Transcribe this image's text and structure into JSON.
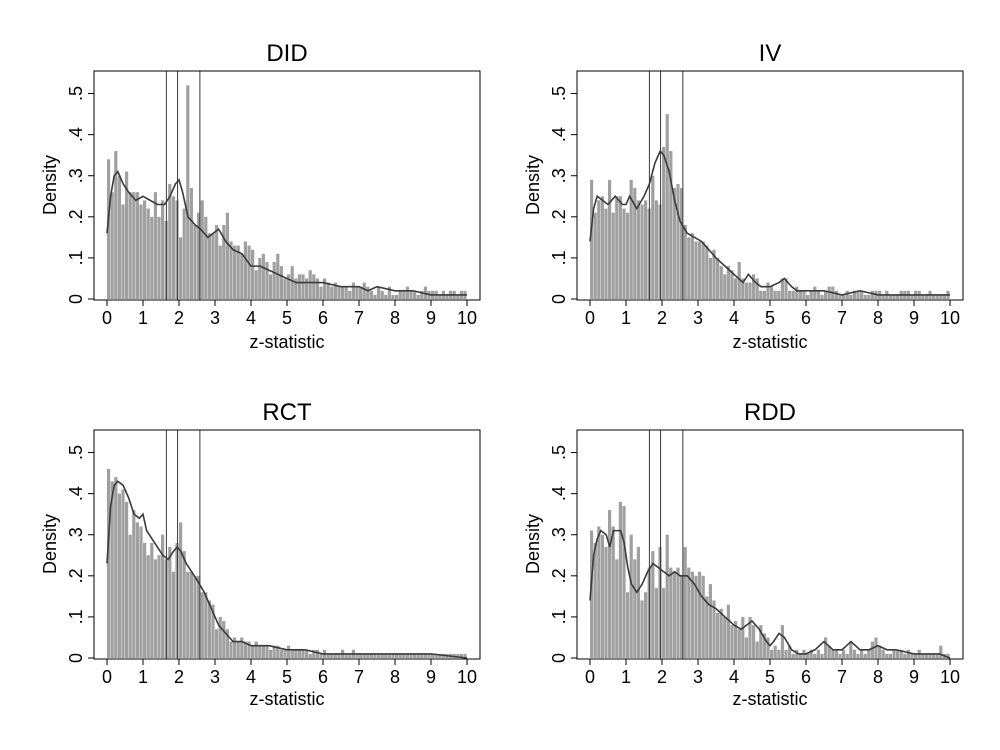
{
  "colors": {
    "bar": "#a0a0a0",
    "curve": "#3a3a3a",
    "vline": "#3a3a3a",
    "frame": "#000000",
    "background": "#ffffff"
  },
  "chart_data": [
    {
      "type": "bar",
      "title": "DID",
      "xlabel": "z-statistic",
      "ylabel": "Density",
      "xlim": [
        0,
        10
      ],
      "ylim": [
        0,
        0.55
      ],
      "xticks": [
        "0",
        "1",
        "2",
        "3",
        "4",
        "5",
        "6",
        "7",
        "8",
        "9",
        "10"
      ],
      "yticks": [
        "0",
        ".1",
        ".2",
        ".3",
        ".4",
        ".5"
      ],
      "grid": false,
      "reference_lines_x": [
        1.65,
        1.96,
        2.58
      ],
      "bin_width": 0.1,
      "values": [
        0.34,
        0.26,
        0.36,
        0.3,
        0.23,
        0.31,
        0.26,
        0.26,
        0.26,
        0.23,
        0.24,
        0.22,
        0.2,
        0.26,
        0.2,
        0.24,
        0.19,
        0.28,
        0.25,
        0.24,
        0.15,
        0.22,
        0.52,
        0.27,
        0.18,
        0.21,
        0.24,
        0.2,
        0.16,
        0.16,
        0.18,
        0.13,
        0.18,
        0.21,
        0.14,
        0.13,
        0.13,
        0.11,
        0.14,
        0.13,
        0.12,
        0.07,
        0.1,
        0.11,
        0.09,
        0.06,
        0.09,
        0.11,
        0.08,
        0.05,
        0.06,
        0.08,
        0.05,
        0.06,
        0.06,
        0.05,
        0.07,
        0.06,
        0.05,
        0.03,
        0.05,
        0.04,
        0.03,
        0.04,
        0.03,
        0.03,
        0.03,
        0.02,
        0.04,
        0.03,
        0.03,
        0.04,
        0.03,
        0.02,
        0.01,
        0.03,
        0.02,
        0.01,
        0.03,
        0.01,
        0.01,
        0.02,
        0.02,
        0.03,
        0.02,
        0.02,
        0.01,
        0.02,
        0.03,
        0.02,
        0.02,
        0.02,
        0.01,
        0.02,
        0.01,
        0.02,
        0.02,
        0.01,
        0.02,
        0.02
      ],
      "density_x": [
        0,
        0.1,
        0.2,
        0.3,
        0.45,
        0.6,
        0.8,
        1.0,
        1.2,
        1.4,
        1.6,
        1.75,
        1.9,
        2.0,
        2.1,
        2.25,
        2.45,
        2.6,
        2.8,
        2.95,
        3.1,
        3.3,
        3.5,
        3.75,
        4.0,
        4.25,
        4.5,
        4.75,
        5.0,
        5.25,
        5.5,
        5.75,
        6.0,
        6.5,
        7.0,
        7.25,
        7.5,
        8.0,
        8.5,
        9.0,
        9.5,
        10.0
      ],
      "density_y": [
        0.16,
        0.25,
        0.3,
        0.31,
        0.28,
        0.26,
        0.24,
        0.25,
        0.24,
        0.23,
        0.23,
        0.25,
        0.28,
        0.29,
        0.26,
        0.2,
        0.18,
        0.17,
        0.15,
        0.16,
        0.17,
        0.14,
        0.12,
        0.11,
        0.08,
        0.08,
        0.07,
        0.06,
        0.05,
        0.04,
        0.04,
        0.04,
        0.04,
        0.03,
        0.03,
        0.02,
        0.03,
        0.02,
        0.02,
        0.01,
        0.01,
        0.01
      ]
    },
    {
      "type": "bar",
      "title": "IV",
      "xlabel": "z-statistic",
      "ylabel": "Density",
      "xlim": [
        0,
        10
      ],
      "ylim": [
        0,
        0.55
      ],
      "xticks": [
        "0",
        "1",
        "2",
        "3",
        "4",
        "5",
        "6",
        "7",
        "8",
        "9",
        "10"
      ],
      "yticks": [
        "0",
        ".1",
        ".2",
        ".3",
        ".4",
        ".5"
      ],
      "grid": false,
      "reference_lines_x": [
        1.65,
        1.96,
        2.58
      ],
      "bin_width": 0.1,
      "values": [
        0.29,
        0.21,
        0.24,
        0.25,
        0.22,
        0.29,
        0.21,
        0.25,
        0.25,
        0.22,
        0.21,
        0.29,
        0.27,
        0.24,
        0.23,
        0.24,
        0.22,
        0.3,
        0.24,
        0.23,
        0.37,
        0.45,
        0.36,
        0.27,
        0.28,
        0.27,
        0.18,
        0.15,
        0.16,
        0.14,
        0.14,
        0.14,
        0.13,
        0.1,
        0.12,
        0.1,
        0.08,
        0.06,
        0.08,
        0.07,
        0.05,
        0.09,
        0.05,
        0.04,
        0.04,
        0.06,
        0.05,
        0.02,
        0.02,
        0.04,
        0.03,
        0.02,
        0.02,
        0.05,
        0.05,
        0.02,
        0.02,
        0.03,
        0.02,
        0.02,
        0.01,
        0.02,
        0.03,
        0.02,
        0.01,
        0.02,
        0.03,
        0.03,
        0.02,
        0.01,
        0.01,
        0.02,
        0.01,
        0.02,
        0.02,
        0.02,
        0.01,
        0.01,
        0.02,
        0.02,
        0.02,
        0.01,
        0.02,
        0.01,
        0.01,
        0.01,
        0.02,
        0.02,
        0.02,
        0.01,
        0.02,
        0.02,
        0.01,
        0.01,
        0.02,
        0.01,
        0.01,
        0.01,
        0.01,
        0.02
      ],
      "density_x": [
        0,
        0.1,
        0.2,
        0.35,
        0.5,
        0.7,
        0.9,
        1.0,
        1.1,
        1.3,
        1.5,
        1.65,
        1.8,
        1.95,
        2.05,
        2.2,
        2.35,
        2.5,
        2.7,
        2.9,
        3.1,
        3.3,
        3.5,
        3.75,
        4.0,
        4.25,
        4.4,
        4.6,
        4.75,
        5.0,
        5.25,
        5.4,
        5.6,
        5.75,
        6.0,
        6.5,
        7.0,
        7.5,
        8.0,
        8.5,
        9.0,
        9.5,
        10.0
      ],
      "density_y": [
        0.14,
        0.22,
        0.25,
        0.24,
        0.23,
        0.25,
        0.23,
        0.23,
        0.25,
        0.22,
        0.25,
        0.28,
        0.33,
        0.36,
        0.35,
        0.31,
        0.24,
        0.19,
        0.16,
        0.15,
        0.14,
        0.12,
        0.1,
        0.08,
        0.06,
        0.04,
        0.06,
        0.04,
        0.03,
        0.03,
        0.04,
        0.05,
        0.03,
        0.02,
        0.02,
        0.02,
        0.01,
        0.02,
        0.01,
        0.01,
        0.01,
        0.01,
        0.01
      ]
    },
    {
      "type": "bar",
      "title": "RCT",
      "xlabel": "z-statistic",
      "ylabel": "Density",
      "xlim": [
        0,
        10
      ],
      "ylim": [
        0,
        0.55
      ],
      "xticks": [
        "0",
        "1",
        "2",
        "3",
        "4",
        "5",
        "6",
        "7",
        "8",
        "9",
        "10"
      ],
      "yticks": [
        "0",
        ".1",
        ".2",
        ".3",
        ".4",
        ".5"
      ],
      "grid": false,
      "reference_lines_x": [
        1.65,
        1.96,
        2.58
      ],
      "bin_width": 0.1,
      "values": [
        0.46,
        0.43,
        0.44,
        0.4,
        0.41,
        0.38,
        0.3,
        0.36,
        0.33,
        0.32,
        0.28,
        0.25,
        0.28,
        0.24,
        0.25,
        0.3,
        0.24,
        0.27,
        0.21,
        0.28,
        0.33,
        0.26,
        0.21,
        0.21,
        0.2,
        0.2,
        0.16,
        0.16,
        0.14,
        0.13,
        0.07,
        0.1,
        0.09,
        0.07,
        0.04,
        0.05,
        0.04,
        0.05,
        0.04,
        0.04,
        0.03,
        0.04,
        0.03,
        0.03,
        0.03,
        0.02,
        0.03,
        0.03,
        0.02,
        0.02,
        0.03,
        0.02,
        0.02,
        0.02,
        0.02,
        0.02,
        0.01,
        0.02,
        0.02,
        0.01,
        0.02,
        0.01,
        0.01,
        0.01,
        0.01,
        0.02,
        0.01,
        0.01,
        0.02,
        0.01,
        0.01,
        0.01,
        0.01,
        0.01,
        0.01,
        0.01,
        0.01,
        0.01,
        0.01,
        0.01,
        0.01,
        0.01,
        0.01,
        0.01,
        0.01,
        0.01,
        0.01,
        0.01,
        0.01,
        0.01,
        0.01,
        0.01,
        0.01,
        0.01,
        0.01,
        0.01,
        0.01,
        0.01,
        0.01,
        0.01
      ],
      "density_x": [
        0,
        0.1,
        0.2,
        0.3,
        0.45,
        0.6,
        0.75,
        0.9,
        1.0,
        1.1,
        1.25,
        1.4,
        1.55,
        1.7,
        1.85,
        1.95,
        2.05,
        2.2,
        2.35,
        2.5,
        2.7,
        2.9,
        3.1,
        3.3,
        3.5,
        3.75,
        4.0,
        4.25,
        4.5,
        5.0,
        5.5,
        6.0,
        6.5,
        7.0,
        8.0,
        9.0,
        10.0
      ],
      "density_y": [
        0.23,
        0.37,
        0.42,
        0.43,
        0.42,
        0.39,
        0.35,
        0.34,
        0.35,
        0.31,
        0.29,
        0.27,
        0.25,
        0.24,
        0.26,
        0.27,
        0.26,
        0.23,
        0.21,
        0.19,
        0.16,
        0.12,
        0.08,
        0.06,
        0.04,
        0.04,
        0.03,
        0.03,
        0.03,
        0.02,
        0.02,
        0.01,
        0.01,
        0.01,
        0.01,
        0.01,
        0.0
      ]
    },
    {
      "type": "bar",
      "title": "RDD",
      "xlabel": "z-statistic",
      "ylabel": "Density",
      "xlim": [
        0,
        10
      ],
      "ylim": [
        0,
        0.55
      ],
      "xticks": [
        "0",
        "1",
        "2",
        "3",
        "4",
        "5",
        "6",
        "7",
        "8",
        "9",
        "10"
      ],
      "yticks": [
        "0",
        ".1",
        ".2",
        ".3",
        ".4",
        ".5"
      ],
      "grid": false,
      "reference_lines_x": [
        1.65,
        1.96,
        2.58
      ],
      "bin_width": 0.1,
      "values": [
        0.31,
        0.28,
        0.32,
        0.3,
        0.27,
        0.36,
        0.32,
        0.24,
        0.38,
        0.37,
        0.16,
        0.3,
        0.24,
        0.27,
        0.14,
        0.16,
        0.22,
        0.26,
        0.17,
        0.27,
        0.17,
        0.3,
        0.22,
        0.21,
        0.22,
        0.2,
        0.27,
        0.22,
        0.21,
        0.2,
        0.21,
        0.2,
        0.15,
        0.18,
        0.14,
        0.11,
        0.12,
        0.1,
        0.13,
        0.08,
        0.09,
        0.07,
        0.1,
        0.05,
        0.1,
        0.08,
        0.04,
        0.08,
        0.06,
        0.05,
        0.02,
        0.03,
        0.02,
        0.08,
        0.02,
        0.03,
        0.01,
        0.02,
        0.01,
        0.02,
        0.01,
        0.02,
        0.01,
        0.02,
        0.01,
        0.05,
        0.03,
        0.02,
        0.02,
        0.01,
        0.02,
        0.01,
        0.04,
        0.02,
        0.01,
        0.02,
        0.01,
        0.02,
        0.04,
        0.05,
        0.03,
        0.02,
        0.01,
        0.01,
        0.02,
        0.02,
        0.02,
        0.01,
        0.02,
        0.01,
        0.01,
        0.02,
        0.01,
        0.01,
        0.01,
        0.01,
        0.01,
        0.03,
        0.01,
        0.01
      ],
      "density_x": [
        0,
        0.1,
        0.2,
        0.3,
        0.45,
        0.55,
        0.65,
        0.75,
        0.85,
        0.95,
        1.05,
        1.15,
        1.3,
        1.45,
        1.6,
        1.75,
        1.9,
        2.05,
        2.2,
        2.35,
        2.5,
        2.7,
        2.9,
        3.1,
        3.3,
        3.5,
        3.75,
        4.0,
        4.2,
        4.35,
        4.5,
        4.7,
        4.9,
        5.0,
        5.1,
        5.25,
        5.4,
        5.6,
        5.8,
        6.0,
        6.25,
        6.5,
        6.75,
        7.0,
        7.25,
        7.5,
        7.75,
        8.0,
        8.25,
        8.5,
        9.0,
        9.5,
        9.7,
        10.0
      ],
      "density_y": [
        0.14,
        0.25,
        0.29,
        0.31,
        0.3,
        0.27,
        0.31,
        0.31,
        0.31,
        0.28,
        0.22,
        0.18,
        0.16,
        0.18,
        0.21,
        0.23,
        0.22,
        0.21,
        0.2,
        0.21,
        0.2,
        0.2,
        0.18,
        0.15,
        0.13,
        0.12,
        0.1,
        0.08,
        0.07,
        0.08,
        0.09,
        0.07,
        0.04,
        0.03,
        0.04,
        0.06,
        0.05,
        0.02,
        0.01,
        0.01,
        0.02,
        0.04,
        0.02,
        0.02,
        0.04,
        0.02,
        0.02,
        0.03,
        0.02,
        0.02,
        0.01,
        0.01,
        0.01,
        0.0
      ]
    }
  ]
}
